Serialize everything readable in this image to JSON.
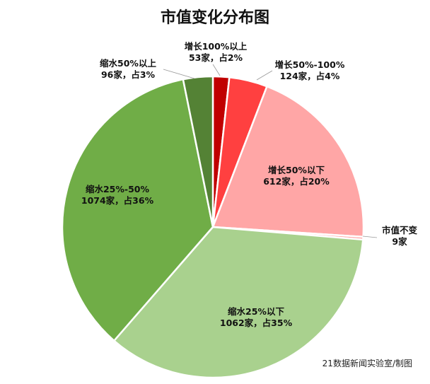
{
  "chart_data": {
    "type": "pie",
    "title": "市值变化分布图",
    "slices": [
      {
        "category": "增长100%以上",
        "count_label": "53家，占2%",
        "value": 53,
        "color": "#c00000"
      },
      {
        "category": "增长50%-100%",
        "count_label": "124家，占4%",
        "value": 124,
        "color": "#ff4040"
      },
      {
        "category": "增长50%以下",
        "count_label": "612家，占20%",
        "value": 612,
        "color": "#ffa6a6"
      },
      {
        "category": "市值不变",
        "count_label": "9家",
        "value": 9,
        "color": "#ffa6a6"
      },
      {
        "category": "缩水25%以下",
        "count_label": "1062家，占35%",
        "value": 1062,
        "color": "#a9d18e"
      },
      {
        "category": "缩水25%-50%",
        "count_label": "1074家，占36%",
        "value": 1074,
        "color": "#70ad47"
      },
      {
        "category": "缩水50%以上",
        "count_label": "96家，占3%",
        "value": 96,
        "color": "#548235"
      }
    ],
    "legend": "none"
  },
  "credit": "21数据新闻实验室/制图"
}
